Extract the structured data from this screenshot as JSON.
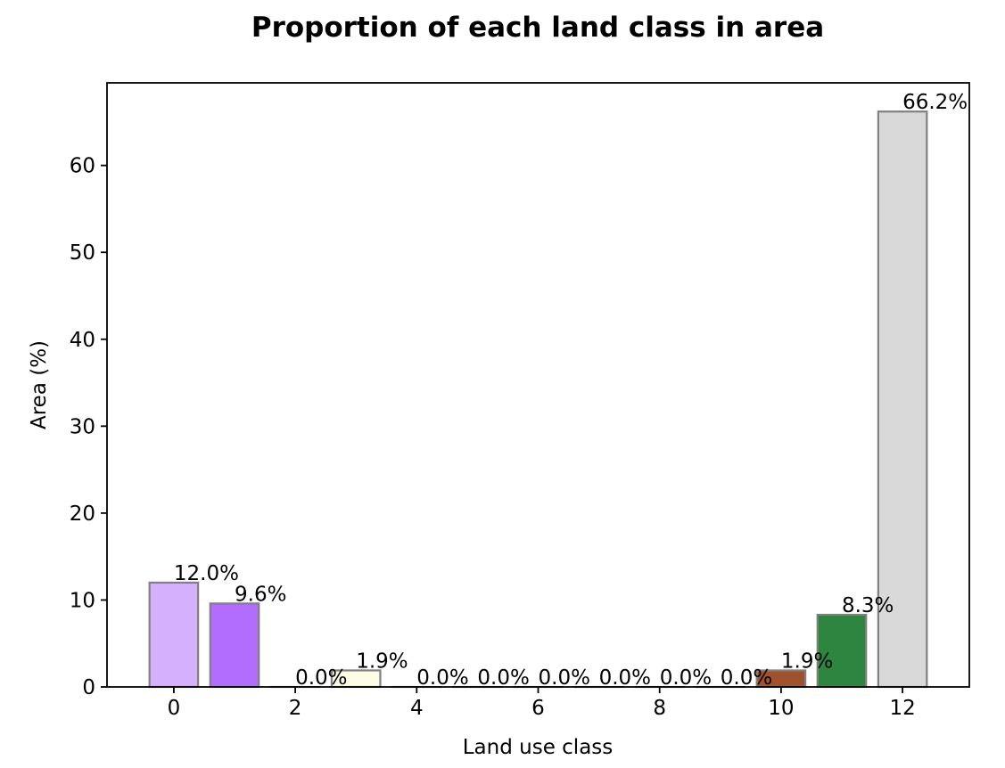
{
  "chart_data": {
    "type": "bar",
    "title": "Proportion of each land class in area",
    "xlabel": "Land use class",
    "ylabel": "Area (%)",
    "xlim": [
      -1.1,
      13.1
    ],
    "ylim": [
      0,
      69.5
    ],
    "xticks": [
      0,
      2,
      4,
      6,
      8,
      10,
      12
    ],
    "yticks": [
      0,
      10,
      20,
      30,
      40,
      50,
      60
    ],
    "grid": false,
    "bars": [
      {
        "x": 0,
        "value": 12.0,
        "label": "12.0%",
        "color": "#d5b0fd"
      },
      {
        "x": 1,
        "value": 9.6,
        "label": "9.6%",
        "color": "#b26dff"
      },
      {
        "x": 2,
        "value": 0.0,
        "label": "0.0%",
        "color": "#f5f5f5"
      },
      {
        "x": 3,
        "value": 1.9,
        "label": "1.9%",
        "color": "#fdfde6"
      },
      {
        "x": 4,
        "value": 0.0,
        "label": "0.0%",
        "color": "#f5f5f5"
      },
      {
        "x": 5,
        "value": 0.0,
        "label": "0.0%",
        "color": "#f5f5f5"
      },
      {
        "x": 6,
        "value": 0.0,
        "label": "0.0%",
        "color": "#f5f5f5"
      },
      {
        "x": 7,
        "value": 0.0,
        "label": "0.0%",
        "color": "#f5f5f5"
      },
      {
        "x": 8,
        "value": 0.0,
        "label": "0.0%",
        "color": "#f5f5f5"
      },
      {
        "x": 9,
        "value": 0.0,
        "label": "0.0%",
        "color": "#f5f5f5"
      },
      {
        "x": 10,
        "value": 1.9,
        "label": "1.9%",
        "color": "#a0522d"
      },
      {
        "x": 11,
        "value": 8.3,
        "label": "8.3%",
        "color": "#2e8540"
      },
      {
        "x": 12,
        "value": 66.2,
        "label": "66.2%",
        "color": "#d9d9d9"
      }
    ],
    "bar_edge_color": "#808080",
    "axis_color": "#000000"
  }
}
